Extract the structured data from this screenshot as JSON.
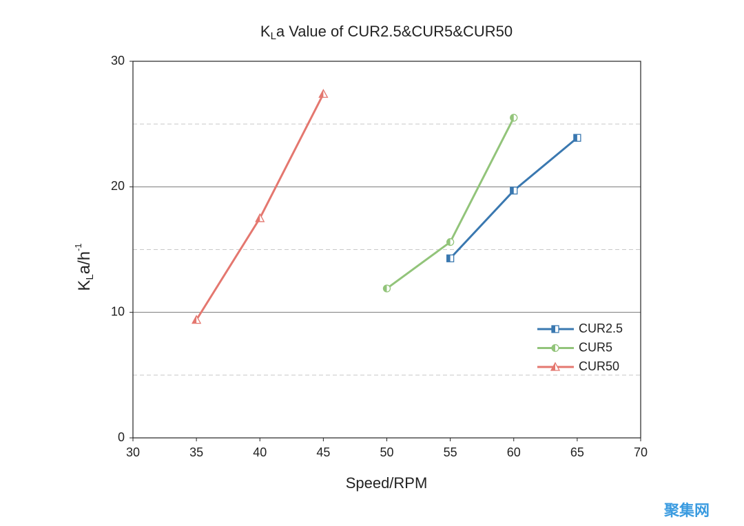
{
  "chart_data": {
    "type": "line",
    "title": {
      "main": "K",
      "sub": "L",
      "rest": "a Value of CUR2.5&CUR5&CUR50"
    },
    "x_label": "Speed/RPM",
    "y_label": {
      "main": "K",
      "sub": "L",
      "rest": "a/h",
      "sup": "-1"
    },
    "xlim": [
      30,
      70
    ],
    "xticks": [
      30,
      35,
      40,
      45,
      50,
      55,
      60,
      65,
      70
    ],
    "ylim": [
      0,
      30
    ],
    "yticks": [
      0,
      10,
      20,
      30
    ],
    "minor_grid": [
      5,
      15,
      25
    ],
    "grid": true,
    "legend": "lower-right",
    "series": [
      {
        "name": "CUR2.5",
        "color": "#3a78b0",
        "marker": "square",
        "x": [
          55,
          60,
          65
        ],
        "values": [
          14.3,
          19.7,
          23.9
        ]
      },
      {
        "name": "CUR5",
        "color": "#92c47a",
        "marker": "circle",
        "x": [
          50,
          55,
          60
        ],
        "values": [
          11.9,
          15.6,
          25.5
        ]
      },
      {
        "name": "CUR50",
        "color": "#e4776f",
        "marker": "triangle",
        "x": [
          35,
          40,
          45
        ],
        "values": [
          9.4,
          17.5,
          27.4
        ]
      }
    ]
  },
  "watermark": "聚集网"
}
